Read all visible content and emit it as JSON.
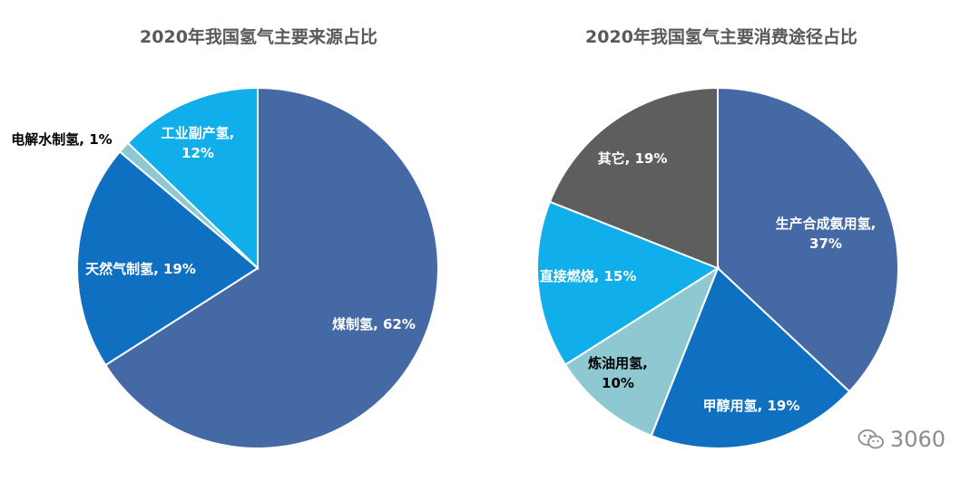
{
  "chart_data": [
    {
      "type": "pie",
      "title": "2020年我国氢气主要来源占比",
      "slices": [
        {
          "name": "煤制氢",
          "value": 62,
          "label": "煤制氢, 62%",
          "label_lines": [
            "煤制氢, 62%"
          ],
          "color": "#4569A5",
          "label_color": "#ffffff"
        },
        {
          "name": "天然气制氢",
          "value": 19,
          "label": "天然气制氢, 19%",
          "label_lines": [
            "天然气制氢, 19%"
          ],
          "color": "#0F6FC0",
          "label_color": "#ffffff"
        },
        {
          "name": "电解水制氢",
          "value": 1,
          "label": "电解水制氢, 1%",
          "label_lines": [
            "电解水制氢, 1%"
          ],
          "color": "#8EC8D0",
          "label_color": "#000000"
        },
        {
          "name": "工业副产氢",
          "value": 12,
          "label": "工业副产氢, 12%",
          "label_lines": [
            "工业副产氢,",
            "12%"
          ],
          "color": "#10AEEA",
          "label_color": "#ffffff"
        }
      ]
    },
    {
      "type": "pie",
      "title": "2020年我国氢气主要消费途径占比",
      "slices": [
        {
          "name": "生产合成氨用氢",
          "value": 37,
          "label": "生产合成氨用氢, 37%",
          "label_lines": [
            "生产合成氨用氢,",
            "37%"
          ],
          "color": "#4569A5",
          "label_color": "#ffffff"
        },
        {
          "name": "甲醇用氢",
          "value": 19,
          "label": "甲醇用氢, 19%",
          "label_lines": [
            "甲醇用氢, 19%"
          ],
          "color": "#0F6FC0",
          "label_color": "#ffffff"
        },
        {
          "name": "炼油用氢",
          "value": 10,
          "label": "炼油用氢, 10%",
          "label_lines": [
            "炼油用氢,",
            "10%"
          ],
          "color": "#8EC8D0",
          "label_color": "#000000"
        },
        {
          "name": "直接燃烧",
          "value": 15,
          "label": "直接燃烧, 15%",
          "label_lines": [
            "直接燃烧, 15%"
          ],
          "color": "#10AEEA",
          "label_color": "#ffffff"
        },
        {
          "name": "其它",
          "value": 19,
          "label": "其它, 19%",
          "label_lines": [
            "其它, 19%"
          ],
          "color": "#5E5E5E",
          "label_color": "#ffffff"
        }
      ]
    }
  ],
  "watermark": {
    "text": "3060",
    "icon": "wechat-icon"
  }
}
